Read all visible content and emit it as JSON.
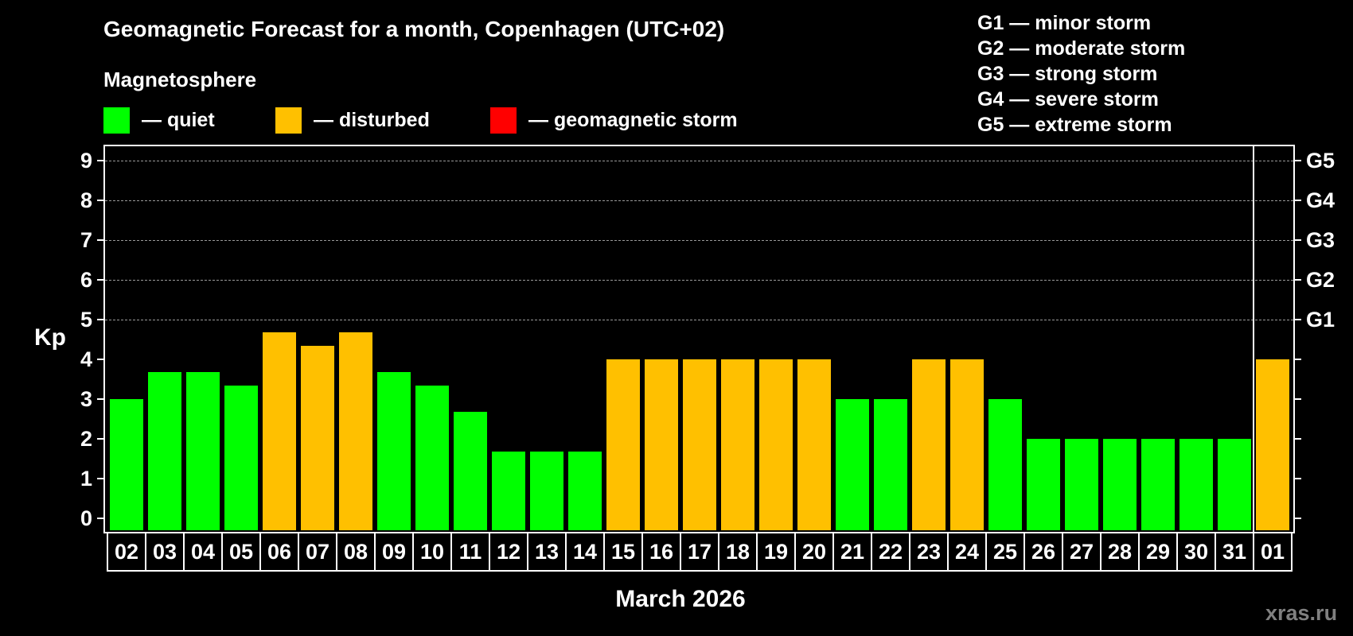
{
  "header": {
    "title": "Geomagnetic Forecast for a month, Copenhagen (UTC+02)",
    "subtitle": "Magnetosphere"
  },
  "legend": [
    {
      "label": "— quiet",
      "color": "#00ff00"
    },
    {
      "label": "— disturbed",
      "color": "#ffc000"
    },
    {
      "label": "— geomagnetic storm",
      "color": "#ff0000"
    }
  ],
  "storm_scale": [
    "G1 — minor storm",
    "G2 — moderate storm",
    "G3 — strong storm",
    "G4 — severe storm",
    "G5 — extreme storm"
  ],
  "axis": {
    "ylabel": "Kp",
    "yticks": [
      "0",
      "1",
      "2",
      "3",
      "4",
      "5",
      "6",
      "7",
      "8",
      "9"
    ],
    "right_labels": [
      {
        "kp": 5,
        "label": "G1"
      },
      {
        "kp": 6,
        "label": "G2"
      },
      {
        "kp": 7,
        "label": "G3"
      },
      {
        "kp": 8,
        "label": "G4"
      },
      {
        "kp": 9,
        "label": "G5"
      }
    ],
    "xlabel": "March 2026"
  },
  "watermark": "xras.ru",
  "colors": {
    "quiet": "#00ff00",
    "disturbed": "#ffc000",
    "storm": "#ff0000",
    "grid": "#9a9a9a",
    "background": "#000000"
  },
  "chart_data": {
    "type": "bar",
    "title": "Geomagnetic Forecast for a month, Copenhagen (UTC+02)",
    "subtitle": "Magnetosphere",
    "xlabel": "March 2026",
    "ylabel": "Kp",
    "ylim": [
      0,
      9
    ],
    "grid": true,
    "legend": [
      "quiet",
      "disturbed",
      "geomagnetic storm"
    ],
    "legend_position": "top",
    "secondary_yaxis": {
      "5": "G1",
      "6": "G2",
      "7": "G3",
      "8": "G4",
      "9": "G5"
    },
    "categories": [
      "02",
      "03",
      "04",
      "05",
      "06",
      "07",
      "08",
      "09",
      "10",
      "11",
      "12",
      "13",
      "14",
      "15",
      "16",
      "17",
      "18",
      "19",
      "20",
      "21",
      "22",
      "23",
      "24",
      "25",
      "26",
      "27",
      "28",
      "29",
      "30",
      "31",
      "01"
    ],
    "values": [
      3.0,
      3.67,
      3.67,
      3.33,
      4.67,
      4.33,
      4.67,
      3.67,
      3.33,
      2.67,
      1.67,
      1.67,
      1.67,
      4.0,
      4.0,
      4.0,
      4.0,
      4.0,
      4.0,
      3.0,
      3.0,
      4.0,
      4.0,
      3.0,
      2.0,
      2.0,
      2.0,
      2.0,
      2.0,
      2.0,
      4.0
    ],
    "status": [
      "quiet",
      "quiet",
      "quiet",
      "quiet",
      "disturbed",
      "disturbed",
      "disturbed",
      "quiet",
      "quiet",
      "quiet",
      "quiet",
      "quiet",
      "quiet",
      "disturbed",
      "disturbed",
      "disturbed",
      "disturbed",
      "disturbed",
      "disturbed",
      "quiet",
      "quiet",
      "disturbed",
      "disturbed",
      "quiet",
      "quiet",
      "quiet",
      "quiet",
      "quiet",
      "quiet",
      "quiet",
      "disturbed"
    ]
  }
}
